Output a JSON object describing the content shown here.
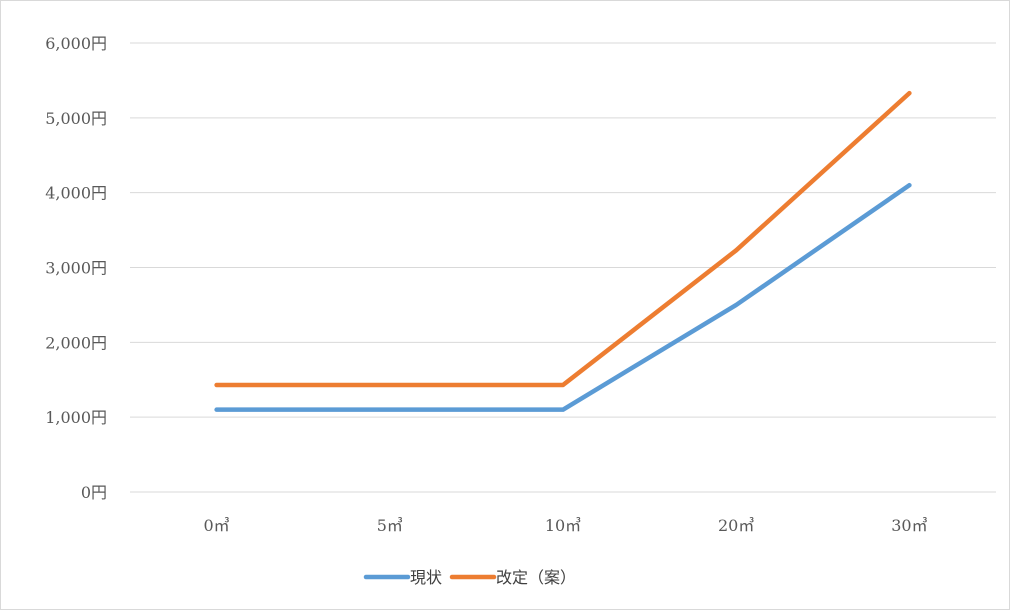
{
  "chart_data": {
    "type": "line",
    "categories": [
      "0㎥",
      "5㎥",
      "10㎥",
      "20㎥",
      "30㎥"
    ],
    "ylim": [
      0,
      6000
    ],
    "yticks": [
      0,
      1000,
      2000,
      3000,
      4000,
      5000,
      6000
    ],
    "ytick_labels": [
      "0円",
      "1,000円",
      "2,000円",
      "3,000円",
      "4,000円",
      "5,000円",
      "6,000円"
    ],
    "grid": true,
    "legend_position": "bottom",
    "series": [
      {
        "name": "現状",
        "color": "#5b9bd5",
        "values": [
          1100,
          1100,
          1100,
          2500,
          4100
        ]
      },
      {
        "name": "改定（案）",
        "color": "#ed7d31",
        "values": [
          1430,
          1430,
          1430,
          3230,
          5330
        ]
      }
    ]
  }
}
